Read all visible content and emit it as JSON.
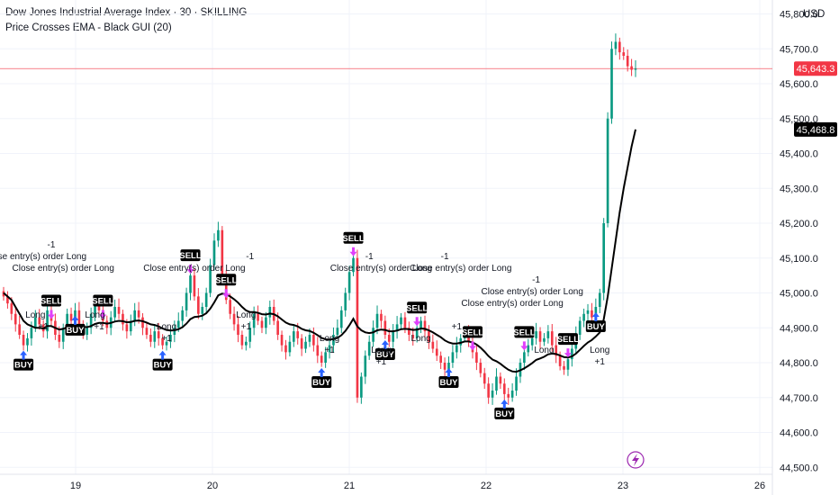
{
  "header": {
    "title": "Dow Jones Industrial Average Index · 30 · SKILLING",
    "subtitle": "Price Crosses EMA - Black GUI (20)",
    "currency": "USD"
  },
  "colors": {
    "up": "#089981",
    "down": "#f23645",
    "ema": "#000000",
    "buy_arrow": "#2962ff",
    "sell_arrow": "#e040fb",
    "price_line": "#f23645",
    "tag_bg": "#000000",
    "grid": "#f0f3fa"
  },
  "chart_data": {
    "type": "candlestick",
    "y_axis": {
      "ticks": [
        "45,800.0",
        "45,700.0",
        "45,600.0",
        "45,500.0",
        "45,400.0",
        "45,300.0",
        "45,200.0",
        "45,100.0",
        "45,000.0",
        "44,900.0",
        "44,800.0",
        "44,700.0",
        "44,600.0",
        "44,500.0"
      ],
      "ylim": [
        44480,
        45840
      ]
    },
    "x_axis": {
      "ticks": [
        "19",
        "20",
        "21",
        "22",
        "23",
        "26"
      ]
    },
    "price_badges": [
      {
        "label": "45,643.3",
        "value": 45643.3,
        "color": "#f23645"
      },
      {
        "label": "45,468.8",
        "value": 45468.8,
        "color": "#000000"
      }
    ],
    "candles_close": [
      44990,
      44970,
      44940,
      44910,
      44880,
      44850,
      44870,
      44900,
      44930,
      44910,
      44890,
      44950,
      44920,
      44880,
      44860,
      44900,
      44940,
      44920,
      44950,
      44910,
      44880,
      44900,
      44940,
      44970,
      44950,
      44920,
      44900,
      44930,
      44960,
      44940,
      44910,
      44890,
      44920,
      44950,
      44930,
      44900,
      44880,
      44860,
      44890,
      44870,
      44850,
      44860,
      44880,
      44900,
      44920,
      44950,
      45000,
      45050,
      44990,
      44940,
      44960,
      45000,
      45080,
      45150,
      45180,
      45050,
      44980,
      44940,
      44910,
      44880,
      44850,
      44860,
      44900,
      44940,
      44920,
      44900,
      44930,
      44960,
      44920,
      44880,
      44850,
      44830,
      44860,
      44890,
      44870,
      44840,
      44860,
      44880,
      44850,
      44820,
      44800,
      44830,
      44850,
      44880,
      44900,
      44950,
      45000,
      45060,
      45100,
      44700,
      44760,
      44820,
      44860,
      44900,
      44940,
      44920,
      44880,
      44860,
      44890,
      44910,
      44930,
      44900,
      44880,
      44870,
      44900,
      44920,
      44890,
      44860,
      44840,
      44820,
      44800,
      44780,
      44800,
      44830,
      44850,
      44870,
      44890,
      44860,
      44830,
      44800,
      44770,
      44740,
      44700,
      44720,
      44760,
      44740,
      44710,
      44700,
      44720,
      44760,
      44800,
      44830,
      44850,
      44870,
      44890,
      44860,
      44870,
      44890,
      44850,
      44820,
      44790,
      44780,
      44810,
      44840,
      44880,
      44920,
      44940,
      44950,
      44930,
      44960,
      45000,
      45200,
      45500,
      45700,
      45720,
      45690,
      45680,
      45650,
      45640,
      45643
    ],
    "ema_points": [
      45000,
      44990,
      44980,
      44960,
      44940,
      44920,
      44910,
      44905,
      44900,
      44900,
      44898,
      44905,
      44905,
      44900,
      44895,
      44897,
      44902,
      44903,
      44907,
      44906,
      44903,
      44902,
      44905,
      44911,
      44914,
      44914,
      44912,
      44914,
      44918,
      44920,
      44919,
      44916,
      44917,
      44920,
      44921,
      44919,
      44915,
      44910,
      44908,
      44904,
      44898,
      44894,
      44892,
      44893,
      44896,
      44902,
      44912,
      44925,
      44931,
      44932,
      44935,
      44942,
      44955,
      44973,
      44993,
      44998,
      44996,
      44990,
      44982,
      44972,
      44960,
      44950,
      44945,
      44945,
      44943,
      44939,
      44938,
      44941,
      44939,
      44933,
      44924,
      44915,
      44910,
      44908,
      44904,
      44897,
      44893,
      44891,
      44886,
      44879,
      44871,
      44867,
      44866,
      44868,
      44871,
      44879,
      44891,
      44907,
      44926,
      44904,
      44893,
      44887,
      44885,
      44887,
      44893,
      44895,
      44894,
      44890,
      44890,
      44892,
      44896,
      44897,
      44896,
      44894,
      44895,
      44898,
      44897,
      44893,
      44887,
      44880,
      44873,
      44864,
      44858,
      44855,
      44855,
      44857,
      44861,
      44861,
      44858,
      44852,
      44843,
      44832,
      44819,
      44809,
      44804,
      44797,
      44788,
      44780,
      44775,
      44774,
      44778,
      44784,
      44791,
      44799,
      44808,
      44812,
      44817,
      44824,
      44826,
      44825,
      44821,
      44816,
      44815,
      44818,
      44826,
      44837,
      44848,
      44858,
      44865,
      44875,
      44887,
      44925,
      44990,
      45070,
      45150,
      45230,
      45300,
      45360,
      45420,
      45468.8
    ],
    "signals": [
      {
        "type": "tag",
        "text": "BUY",
        "x_index": 5
      },
      {
        "type": "tag",
        "text": "SELL",
        "x_index": 12
      },
      {
        "type": "tag",
        "text": "BUY",
        "x_index": 18
      },
      {
        "type": "tag",
        "text": "SELL",
        "x_index": 25
      },
      {
        "type": "tag",
        "text": "BUY",
        "x_index": 40
      },
      {
        "type": "tag",
        "text": "SELL",
        "x_index": 47
      },
      {
        "type": "tag",
        "text": "SELL",
        "x_index": 56
      },
      {
        "type": "tag",
        "text": "BUY",
        "x_index": 80
      },
      {
        "type": "tag",
        "text": "SELL",
        "x_index": 88
      },
      {
        "type": "tag",
        "text": "BUY",
        "x_index": 96
      },
      {
        "type": "tag",
        "text": "SELL",
        "x_index": 104
      },
      {
        "type": "tag",
        "text": "BUY",
        "x_index": 112
      },
      {
        "type": "tag",
        "text": "SELL",
        "x_index": 118
      },
      {
        "type": "tag",
        "text": "BUY",
        "x_index": 126
      },
      {
        "type": "tag",
        "text": "SELL",
        "x_index": 131
      },
      {
        "type": "tag",
        "text": "SELL",
        "x_index": 142
      },
      {
        "type": "tag",
        "text": "BUY",
        "x_index": 149
      }
    ],
    "annotations": [
      {
        "text": "Close entry(s) order Long",
        "x_index": 8,
        "level": 1
      },
      {
        "text": "-1",
        "x_index": 12,
        "level": 0
      },
      {
        "text": "Close entry(s) order Long",
        "x_index": 15,
        "level": 2
      },
      {
        "text": "Long",
        "x_index": 8,
        "level": 6
      },
      {
        "text": "+1",
        "x_index": 10,
        "level": 7
      },
      {
        "text": "Long",
        "x_index": 23,
        "level": 6
      },
      {
        "text": "+1",
        "x_index": 24,
        "level": 7
      },
      {
        "text": "Close entry(s) order Long",
        "x_index": 48,
        "level": 2
      },
      {
        "text": "-1",
        "x_index": 62,
        "level": 1
      },
      {
        "text": "Long",
        "x_index": 41,
        "level": 7
      },
      {
        "text": "+1",
        "x_index": 41,
        "level": 8
      },
      {
        "text": "Long",
        "x_index": 61,
        "level": 6
      },
      {
        "text": "+1",
        "x_index": 61,
        "level": 7
      },
      {
        "text": "Close entry(s) order Long",
        "x_index": 95,
        "level": 2
      },
      {
        "text": "-1",
        "x_index": 92,
        "level": 1
      },
      {
        "text": "Long",
        "x_index": 82,
        "level": 8
      },
      {
        "text": "+1",
        "x_index": 82,
        "level": 9
      },
      {
        "text": "Long",
        "x_index": 95,
        "level": 9
      },
      {
        "text": "+1",
        "x_index": 95,
        "level": 10
      },
      {
        "text": "Close entry(s) order Long",
        "x_index": 115,
        "level": 2
      },
      {
        "text": "-1",
        "x_index": 111,
        "level": 1
      },
      {
        "text": "Long",
        "x_index": 105,
        "level": 8
      },
      {
        "text": "+1",
        "x_index": 114,
        "level": 7
      },
      {
        "text": "Close entry(s) order Long",
        "x_index": 133,
        "level": 4
      },
      {
        "text": "-1",
        "x_index": 134,
        "level": 3
      },
      {
        "text": "Long",
        "x_index": 136,
        "level": 9
      },
      {
        "text": "Long",
        "x_index": 150,
        "level": 9
      },
      {
        "text": "+1",
        "x_index": 150,
        "level": 10
      },
      {
        "text": "Close entry(s) order Long",
        "x_index": 128,
        "level": 5
      }
    ]
  }
}
